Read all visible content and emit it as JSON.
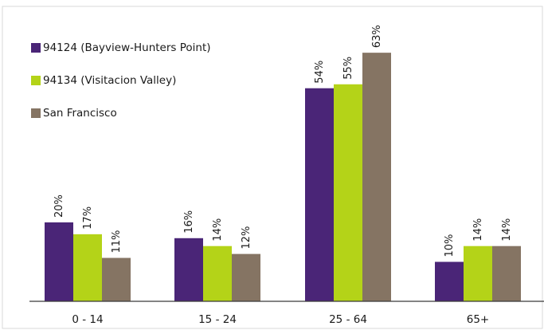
{
  "chart_data": {
    "type": "bar",
    "categories": [
      "0 - 14",
      "15 - 24",
      "25 - 64",
      "65+"
    ],
    "series": [
      {
        "name": "94124 (Bayview-Hunters Point)",
        "values": [
          20,
          16,
          54,
          10
        ],
        "labels": [
          "20%",
          "16%",
          "54%",
          "10%"
        ],
        "color": "#4a2577"
      },
      {
        "name": "94134 (Visitacion Valley)",
        "values": [
          17,
          14,
          55,
          14
        ],
        "labels": [
          "17%",
          "14%",
          "55%",
          "14%"
        ],
        "color": "#b4d318"
      },
      {
        "name": "San Francisco",
        "values": [
          11,
          12,
          63,
          14
        ],
        "labels": [
          "11%",
          "12%",
          "63%",
          "14%"
        ],
        "color": "#857463"
      }
    ],
    "ylim": [
      0,
      70
    ],
    "grid": false,
    "legend_position": "top-left"
  }
}
